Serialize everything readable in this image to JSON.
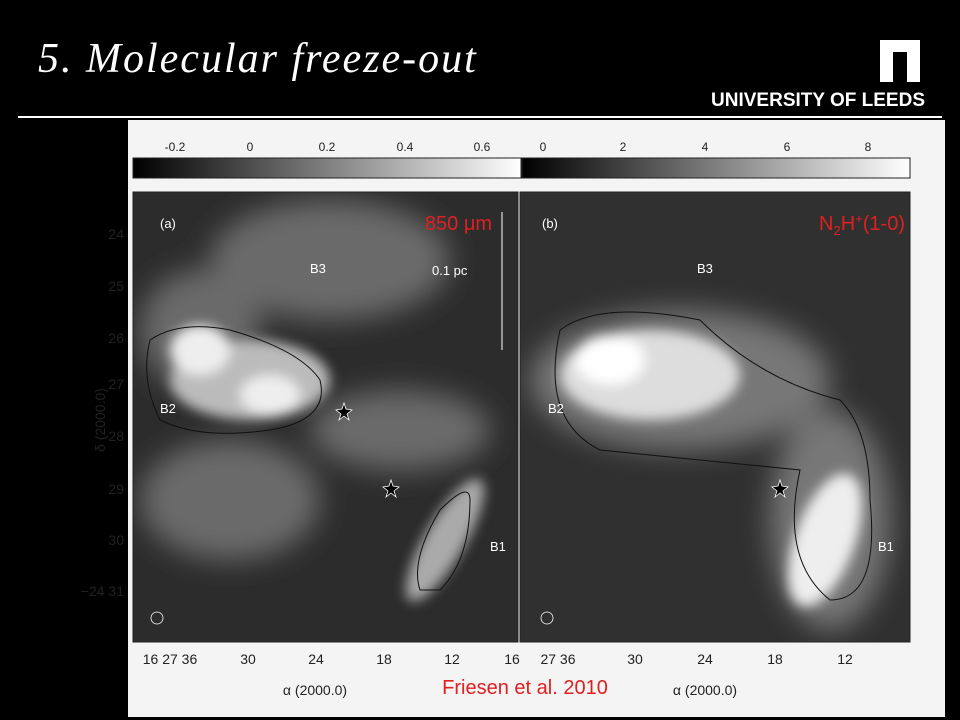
{
  "header": {
    "title": "5. Molecular freeze-out",
    "logo": "UNIVERSITY OF LEEDS"
  },
  "figure": {
    "colorbar_a": [
      "-0.2",
      "0",
      "0.2",
      "0.4",
      "0.6"
    ],
    "colorbar_b": [
      "0",
      "2",
      "4",
      "6",
      "8"
    ],
    "y_ticks": [
      "24",
      "25",
      "26",
      "27",
      "28",
      "29",
      "30",
      "−24 31"
    ],
    "y_label": "δ (2000.0)",
    "panel_a": {
      "label": "(a)",
      "tracer": "850 μm",
      "sources": [
        "B3",
        "B2",
        "B1"
      ],
      "scale": "0.1 pc",
      "x_ticks": [
        "16 27 36",
        "30",
        "24",
        "18",
        "12",
        "16"
      ],
      "x_label": "α (2000.0)"
    },
    "panel_b": {
      "label": "(b)",
      "tracer": {
        "base": "N",
        "sub": "2",
        "mid": "H",
        "sup": "+",
        "tail": "(1-0)"
      },
      "sources": [
        "B3",
        "B2",
        "B1"
      ],
      "x_ticks": [
        "27 36",
        "30",
        "24",
        "18",
        "12"
      ],
      "x_label": "α (2000.0)"
    },
    "credit": "Friesen et al. 2010"
  }
}
